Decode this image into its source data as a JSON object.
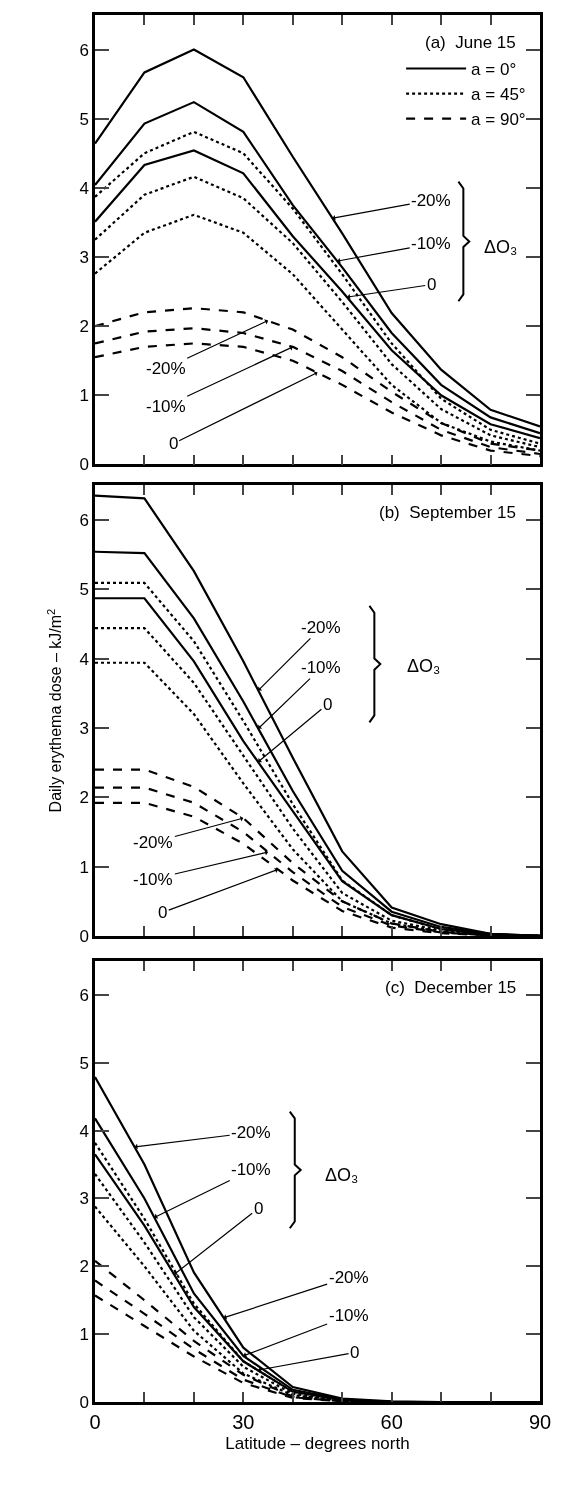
{
  "chart_data": [
    {
      "type": "line",
      "title": "(a)  June 15",
      "x": [
        0,
        10,
        20,
        30,
        40,
        50,
        60,
        70,
        80,
        90
      ],
      "xlim": [
        0,
        90
      ],
      "xticks": [
        0,
        {
          "value": 10,
          "label": null
        },
        {
          "value": 20,
          "label": null
        },
        30,
        {
          "value": 40,
          "label": null
        },
        {
          "value": 50,
          "label": null
        },
        60,
        {
          "value": 70,
          "label": null
        },
        {
          "value": 80,
          "label": null
        },
        90
      ],
      "ylim": [
        0,
        6.5
      ],
      "yticks": [
        0,
        1,
        2,
        3,
        4,
        5,
        6
      ],
      "tick_labels": "y",
      "legend": "top right",
      "series": [
        {
          "name": "a = 0°",
          "color": "#000000",
          "line_style": "solid",
          "values": [
            4.64,
            5.67,
            6.0,
            5.6,
            4.45,
            3.34,
            2.19,
            1.37,
            0.79,
            0.55
          ]
        },
        {
          "color": "#000000",
          "line_style": "solid",
          "values": [
            4.04,
            4.93,
            5.24,
            4.81,
            3.75,
            2.85,
            1.9,
            1.15,
            0.68,
            0.45
          ]
        },
        {
          "color": "#000000",
          "line_style": "solid",
          "values": [
            3.51,
            4.33,
            4.54,
            4.21,
            3.3,
            2.5,
            1.65,
            1.0,
            0.58,
            0.38
          ]
        },
        {
          "name": "a = 45°",
          "color": "#000000",
          "line_style": "dotted",
          "values": [
            3.87,
            4.5,
            4.81,
            4.5,
            3.7,
            2.75,
            1.75,
            0.95,
            0.5,
            0.3
          ]
        },
        {
          "color": "#000000",
          "line_style": "dotted",
          "values": [
            3.25,
            3.9,
            4.16,
            3.85,
            3.2,
            2.35,
            1.45,
            0.8,
            0.42,
            0.25
          ]
        },
        {
          "color": "#000000",
          "line_style": "dotted",
          "values": [
            2.76,
            3.35,
            3.61,
            3.35,
            2.75,
            1.95,
            1.15,
            0.6,
            0.33,
            0.2
          ]
        },
        {
          "name": "a = 90°",
          "color": "#000000",
          "line_style": "dashed",
          "values": [
            2.0,
            2.2,
            2.26,
            2.2,
            1.95,
            1.55,
            1.05,
            0.6,
            0.3,
            0.2
          ]
        },
        {
          "color": "#000000",
          "line_style": "dashed",
          "values": [
            1.75,
            1.92,
            1.97,
            1.9,
            1.7,
            1.35,
            0.9,
            0.5,
            0.25,
            0.15
          ]
        },
        {
          "color": "#000000",
          "line_style": "dashed",
          "values": [
            1.55,
            1.7,
            1.75,
            1.7,
            1.5,
            1.15,
            0.75,
            0.42,
            0.2,
            0.12
          ]
        }
      ],
      "annotations": [
        {
          "text": "-20%",
          "x": 48,
          "y": 3.56
        },
        {
          "text": "-10%",
          "x": 49,
          "y": 2.94
        },
        {
          "text": "0",
          "x": 51,
          "y": 2.42
        },
        {
          "text": "-20%",
          "x": 35,
          "y": 2.08
        },
        {
          "text": "-10%",
          "x": 40,
          "y": 1.7
        },
        {
          "text": "0",
          "x": 45,
          "y": 1.33
        },
        "ΔO₃"
      ]
    },
    {
      "type": "line",
      "title": "(b)  September 15",
      "ylabel": "Daily erythema dose – kJ/m$^{2}$",
      "x": [
        0,
        10,
        20,
        30,
        40,
        50,
        60,
        70,
        80,
        90
      ],
      "xlim": [
        0,
        90
      ],
      "xticks": [
        0,
        {
          "value": 10,
          "label": null
        },
        {
          "value": 20,
          "label": null
        },
        30,
        {
          "value": 40,
          "label": null
        },
        {
          "value": 50,
          "label": null
        },
        60,
        {
          "value": 70,
          "label": null
        },
        {
          "value": 80,
          "label": null
        },
        90
      ],
      "ylim": [
        0,
        6.5
      ],
      "yticks": [
        0,
        1,
        2,
        3,
        4,
        5,
        6
      ],
      "tick_labels": "y",
      "series": [
        {
          "color": "#000000",
          "line_style": "solid",
          "values": [
            6.35,
            6.31,
            5.26,
            3.96,
            2.57,
            1.22,
            0.41,
            0.17,
            0.03,
            0
          ]
        },
        {
          "color": "#000000",
          "line_style": "solid",
          "values": [
            5.54,
            5.52,
            4.58,
            3.38,
            2.09,
            0.94,
            0.35,
            0.13,
            0.03,
            0
          ]
        },
        {
          "color": "#000000",
          "line_style": "solid",
          "values": [
            4.87,
            4.87,
            3.96,
            2.81,
            1.8,
            0.79,
            0.3,
            0.1,
            0.02,
            0
          ]
        },
        {
          "color": "#000000",
          "line_style": "dotted",
          "values": [
            5.09,
            5.09,
            4.25,
            3.1,
            1.9,
            0.8,
            0.3,
            0.1,
            0.02,
            0
          ]
        },
        {
          "color": "#000000",
          "line_style": "dotted",
          "values": [
            4.44,
            4.44,
            3.65,
            2.6,
            1.55,
            0.62,
            0.22,
            0.08,
            0.02,
            0
          ]
        },
        {
          "color": "#000000",
          "line_style": "dotted",
          "values": [
            3.94,
            3.94,
            3.2,
            2.2,
            1.25,
            0.5,
            0.18,
            0.06,
            0.01,
            0
          ]
        },
        {
          "color": "#000000",
          "line_style": "dashed",
          "values": [
            2.4,
            2.4,
            2.15,
            1.7,
            1.05,
            0.5,
            0.18,
            0.06,
            0.01,
            0
          ]
        },
        {
          "color": "#000000",
          "line_style": "dashed",
          "values": [
            2.14,
            2.14,
            1.92,
            1.5,
            0.92,
            0.42,
            0.15,
            0.05,
            0.01,
            0
          ]
        },
        {
          "color": "#000000",
          "line_style": "dashed",
          "values": [
            1.92,
            1.92,
            1.72,
            1.33,
            0.8,
            0.36,
            0.12,
            0.04,
            0.01,
            0
          ]
        }
      ],
      "annotations": [
        {
          "text": "-20%",
          "x": 33,
          "y": 3.54
        },
        {
          "text": "-10%",
          "x": 33,
          "y": 2.99
        },
        {
          "text": "0",
          "x": 33,
          "y": 2.51
        },
        {
          "text": "-20%",
          "x": 30,
          "y": 1.7
        },
        {
          "text": "-10%",
          "x": 35,
          "y": 1.21
        },
        {
          "text": "0",
          "x": 37,
          "y": 0.96
        },
        "ΔO₃"
      ]
    },
    {
      "type": "line",
      "title": "(c)  December 15",
      "xlabel": "Latitude – degrees north",
      "x": [
        0,
        10,
        20,
        30,
        40,
        50,
        60,
        70,
        80,
        90
      ],
      "xlim": [
        0,
        90
      ],
      "xticks": [
        0,
        {
          "value": 10,
          "label": null
        },
        {
          "value": 20,
          "label": null
        },
        30,
        {
          "value": 40,
          "label": null
        },
        {
          "value": 50,
          "label": null
        },
        60,
        {
          "value": 70,
          "label": null
        },
        {
          "value": 80,
          "label": null
        },
        90
      ],
      "ylim": [
        0,
        6.5
      ],
      "yticks": [
        0,
        1,
        2,
        3,
        4,
        5,
        6
      ],
      "series": [
        {
          "color": "#000000",
          "line_style": "solid",
          "values": [
            4.79,
            3.5,
            1.91,
            0.8,
            0.22,
            0.05,
            0.01,
            0,
            0,
            0
          ]
        },
        {
          "color": "#000000",
          "line_style": "solid",
          "values": [
            4.18,
            3.0,
            1.6,
            0.68,
            0.18,
            0.04,
            0,
            0,
            0,
            0
          ]
        },
        {
          "color": "#000000",
          "line_style": "solid",
          "values": [
            3.65,
            2.6,
            1.4,
            0.6,
            0.15,
            0.03,
            0,
            0,
            0,
            0
          ]
        },
        {
          "color": "#000000",
          "line_style": "dotted",
          "values": [
            3.82,
            2.7,
            1.45,
            0.6,
            0.15,
            0.03,
            0,
            0,
            0,
            0
          ]
        },
        {
          "color": "#000000",
          "line_style": "dotted",
          "values": [
            3.36,
            2.35,
            1.25,
            0.52,
            0.12,
            0.02,
            0,
            0,
            0,
            0
          ]
        },
        {
          "color": "#000000",
          "line_style": "dotted",
          "values": [
            2.88,
            2.0,
            1.05,
            0.42,
            0.1,
            0.02,
            0,
            0,
            0,
            0
          ]
        },
        {
          "color": "#000000",
          "line_style": "dashed",
          "values": [
            2.08,
            1.5,
            0.9,
            0.4,
            0.08,
            0.01,
            0,
            0,
            0,
            0
          ]
        },
        {
          "color": "#000000",
          "line_style": "dashed",
          "values": [
            1.79,
            1.3,
            0.78,
            0.33,
            0.07,
            0.01,
            0,
            0,
            0,
            0
          ]
        },
        {
          "color": "#000000",
          "line_style": "dashed",
          "values": [
            1.57,
            1.12,
            0.67,
            0.28,
            0.06,
            0.01,
            0,
            0,
            0,
            0
          ]
        }
      ],
      "annotations": [
        {
          "text": "-20%",
          "x": 8,
          "y": 3.76
        },
        {
          "text": "-10%",
          "x": 12,
          "y": 2.72
        },
        {
          "text": "0",
          "x": 16,
          "y": 1.88
        },
        {
          "text": "-20%",
          "x": 26,
          "y": 1.24
        },
        {
          "text": "-10%",
          "x": 30,
          "y": 0.68
        },
        {
          "text": "0",
          "x": 33,
          "y": 0.47
        },
        "ΔO₃"
      ]
    }
  ]
}
